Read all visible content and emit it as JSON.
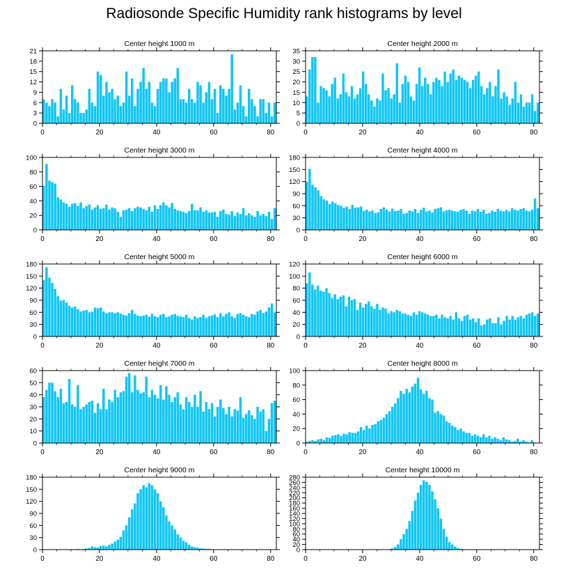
{
  "figure_title": "Radiosonde Specific Humidity rank histograms by level",
  "colors": {
    "bar": "#0fc6f5",
    "bar_edge": "#ffffff",
    "axis": "#000000"
  },
  "chart_data": [
    {
      "type": "bar",
      "title": "Center height 1000 m",
      "ylim": [
        0,
        21
      ],
      "yticks": [
        0,
        3,
        6,
        9,
        12,
        15,
        18,
        21
      ],
      "xlim": [
        0,
        82
      ],
      "xticks": [
        0,
        20,
        40,
        60,
        80
      ],
      "values": [
        7,
        6,
        5,
        7,
        6,
        2,
        10,
        4,
        8,
        3,
        11,
        7,
        6,
        3,
        3,
        4,
        10,
        6,
        5,
        15,
        14,
        8,
        12,
        9,
        10,
        7,
        8,
        5,
        6,
        15,
        8,
        13,
        5,
        10,
        12,
        16,
        10,
        12,
        6,
        5,
        10,
        12,
        13,
        13,
        9,
        12,
        13,
        16,
        7,
        7,
        6,
        10,
        7,
        6,
        12,
        11,
        6,
        9,
        12,
        7,
        10,
        3,
        11,
        10,
        8,
        10,
        20,
        4,
        6,
        11,
        5,
        2,
        10,
        7,
        5,
        2,
        7,
        7,
        3,
        6,
        2,
        6
      ]
    },
    {
      "type": "bar",
      "title": "Center height 2000 m",
      "ylim": [
        0,
        35
      ],
      "yticks": [
        0,
        5,
        10,
        15,
        20,
        25,
        30,
        35
      ],
      "xlim": [
        0,
        82
      ],
      "xticks": [
        0,
        20,
        40,
        60,
        80
      ],
      "values": [
        13,
        26,
        32,
        32,
        10,
        18,
        17,
        16,
        13,
        19,
        22,
        12,
        14,
        24,
        15,
        13,
        18,
        12,
        14,
        17,
        25,
        19,
        14,
        11,
        8,
        12,
        11,
        24,
        16,
        17,
        12,
        14,
        29,
        10,
        19,
        23,
        20,
        13,
        11,
        19,
        27,
        18,
        22,
        19,
        14,
        20,
        22,
        21,
        18,
        25,
        20,
        24,
        26,
        21,
        23,
        22,
        21,
        20,
        17,
        21,
        23,
        25,
        18,
        14,
        17,
        20,
        13,
        18,
        26,
        12,
        15,
        13,
        9,
        12,
        20,
        10,
        14,
        8,
        10,
        10,
        14,
        6,
        10
      ]
    },
    {
      "type": "bar",
      "title": "Center height 3000 m",
      "ylim": [
        0,
        100
      ],
      "yticks": [
        0,
        20,
        40,
        60,
        80,
        100
      ],
      "xlim": [
        0,
        82
      ],
      "xticks": [
        0,
        20,
        40,
        60,
        80
      ],
      "values": [
        61,
        91,
        68,
        66,
        64,
        45,
        42,
        38,
        36,
        32,
        36,
        37,
        33,
        38,
        30,
        33,
        35,
        28,
        31,
        34,
        29,
        30,
        35,
        28,
        31,
        30,
        25,
        18,
        27,
        28,
        30,
        26,
        30,
        32,
        31,
        29,
        27,
        32,
        25,
        34,
        29,
        34,
        38,
        34,
        31,
        37,
        29,
        27,
        26,
        25,
        23,
        26,
        36,
        27,
        27,
        31,
        25,
        27,
        24,
        24,
        25,
        18,
        26,
        28,
        22,
        21,
        26,
        19,
        24,
        22,
        30,
        20,
        23,
        20,
        18,
        26,
        20,
        22,
        19,
        25,
        15,
        30
      ]
    },
    {
      "type": "bar",
      "title": "Center height 4000 m",
      "ylim": [
        0,
        180
      ],
      "yticks": [
        0,
        30,
        60,
        90,
        120,
        150,
        180
      ],
      "xlim": [
        0,
        82
      ],
      "xticks": [
        0,
        20,
        40,
        60,
        80
      ],
      "values": [
        120,
        152,
        112,
        106,
        98,
        84,
        76,
        73,
        64,
        70,
        66,
        62,
        60,
        55,
        58,
        52,
        62,
        55,
        56,
        58,
        47,
        50,
        46,
        48,
        42,
        44,
        52,
        56,
        50,
        46,
        53,
        47,
        48,
        52,
        40,
        42,
        48,
        46,
        52,
        42,
        50,
        55,
        46,
        48,
        43,
        52,
        54,
        56,
        46,
        49,
        50,
        48,
        46,
        45,
        50,
        52,
        48,
        40,
        48,
        46,
        52,
        45,
        50,
        40,
        42,
        48,
        45,
        52,
        48,
        46,
        50,
        46,
        54,
        50,
        48,
        52,
        54,
        48,
        46,
        50,
        78,
        54
      ]
    },
    {
      "type": "bar",
      "title": "Center height 5000 m",
      "ylim": [
        0,
        180
      ],
      "yticks": [
        0,
        30,
        60,
        90,
        120,
        150,
        180
      ],
      "xlim": [
        0,
        82
      ],
      "xticks": [
        0,
        20,
        40,
        60,
        80
      ],
      "values": [
        140,
        172,
        146,
        133,
        118,
        100,
        89,
        90,
        84,
        76,
        72,
        74,
        68,
        62,
        64,
        66,
        60,
        62,
        72,
        70,
        72,
        62,
        58,
        60,
        60,
        58,
        60,
        57,
        54,
        52,
        58,
        66,
        56,
        52,
        50,
        52,
        54,
        49,
        56,
        50,
        48,
        54,
        56,
        48,
        50,
        54,
        56,
        51,
        50,
        48,
        54,
        46,
        42,
        50,
        46,
        48,
        54,
        46,
        50,
        52,
        55,
        48,
        58,
        50,
        56,
        60,
        50,
        46,
        56,
        58,
        54,
        50,
        48,
        56,
        54,
        62,
        66,
        58,
        62,
        72,
        82,
        60
      ]
    },
    {
      "type": "bar",
      "title": "Center height 6000 m",
      "ylim": [
        0,
        120
      ],
      "yticks": [
        0,
        20,
        40,
        60,
        80,
        100,
        120
      ],
      "xlim": [
        0,
        82
      ],
      "xticks": [
        0,
        20,
        40,
        60,
        80
      ],
      "values": [
        88,
        106,
        86,
        78,
        84,
        76,
        74,
        80,
        72,
        64,
        70,
        62,
        66,
        68,
        50,
        66,
        60,
        62,
        44,
        56,
        48,
        54,
        58,
        50,
        46,
        54,
        44,
        48,
        46,
        38,
        42,
        40,
        44,
        42,
        38,
        38,
        36,
        34,
        40,
        36,
        42,
        40,
        38,
        36,
        34,
        34,
        36,
        30,
        36,
        32,
        30,
        34,
        28,
        40,
        30,
        26,
        34,
        36,
        28,
        30,
        24,
        30,
        18,
        20,
        28,
        30,
        22,
        22,
        32,
        20,
        26,
        34,
        28,
        34,
        28,
        32,
        34,
        30,
        36,
        38,
        40,
        34,
        38
      ]
    },
    {
      "type": "bar",
      "title": "Center height 7000 m",
      "ylim": [
        0,
        60
      ],
      "yticks": [
        0,
        10,
        20,
        30,
        40,
        50,
        60
      ],
      "xlim": [
        0,
        82
      ],
      "xticks": [
        0,
        20,
        40,
        60,
        80
      ],
      "values": [
        38,
        44,
        50,
        50,
        43,
        38,
        45,
        33,
        34,
        53,
        32,
        30,
        48,
        28,
        30,
        32,
        34,
        35,
        25,
        33,
        28,
        45,
        28,
        36,
        34,
        44,
        38,
        42,
        43,
        55,
        58,
        42,
        56,
        44,
        41,
        42,
        55,
        38,
        44,
        40,
        37,
        48,
        36,
        47,
        40,
        34,
        38,
        42,
        32,
        28,
        38,
        34,
        30,
        40,
        30,
        43,
        26,
        34,
        28,
        33,
        22,
        30,
        36,
        29,
        24,
        30,
        22,
        28,
        27,
        38,
        21,
        24,
        27,
        23,
        20,
        30,
        26,
        28,
        10,
        20,
        33,
        35
      ]
    },
    {
      "type": "bar",
      "title": "Center height 8000 m",
      "ylim": [
        0,
        100
      ],
      "yticks": [
        0,
        20,
        40,
        60,
        80,
        100
      ],
      "xlim": [
        0,
        82
      ],
      "xticks": [
        0,
        20,
        40,
        60,
        80
      ],
      "values": [
        2,
        3,
        4,
        3,
        5,
        6,
        4,
        8,
        7,
        10,
        11,
        12,
        10,
        13,
        12,
        15,
        14,
        14,
        16,
        22,
        18,
        24,
        20,
        25,
        26,
        30,
        32,
        35,
        40,
        44,
        50,
        55,
        62,
        72,
        68,
        75,
        70,
        78,
        82,
        90,
        74,
        68,
        72,
        62,
        60,
        42,
        44,
        40,
        38,
        30,
        28,
        24,
        22,
        18,
        20,
        16,
        14,
        14,
        10,
        12,
        10,
        8,
        12,
        8,
        10,
        6,
        8,
        6,
        4,
        8,
        5,
        4,
        2,
        3,
        6,
        2,
        4,
        2,
        1,
        4,
        0,
        0
      ]
    },
    {
      "type": "bar",
      "title": "Center height 9000 m",
      "ylim": [
        0,
        180
      ],
      "yticks": [
        0,
        30,
        60,
        90,
        120,
        150,
        180
      ],
      "xlim": [
        0,
        82
      ],
      "xticks": [
        0,
        20,
        40,
        60,
        80
      ],
      "values": [
        0,
        0,
        0,
        0,
        0,
        0,
        0,
        0,
        0,
        0,
        0,
        1,
        2,
        1,
        2,
        3,
        4,
        8,
        6,
        5,
        9,
        10,
        8,
        12,
        15,
        20,
        25,
        32,
        48,
        60,
        80,
        100,
        115,
        140,
        150,
        160,
        155,
        165,
        160,
        150,
        140,
        120,
        105,
        85,
        70,
        60,
        50,
        38,
        30,
        22,
        18,
        12,
        8,
        6,
        5,
        3,
        3,
        2,
        2,
        1,
        1,
        1,
        0,
        0,
        0,
        0,
        0,
        0,
        0,
        0,
        0,
        0,
        0,
        0,
        0,
        0,
        0,
        0,
        0,
        0,
        0,
        0
      ]
    },
    {
      "type": "bar",
      "title": "Center height 10000 m",
      "ylim": [
        0,
        280
      ],
      "yticks": [
        0,
        20,
        40,
        60,
        80,
        100,
        120,
        140,
        160,
        180,
        200,
        220,
        240,
        260,
        280
      ],
      "xlim": [
        0,
        82
      ],
      "xticks": [
        0,
        20,
        40,
        60,
        80
      ],
      "values": [
        0,
        0,
        0,
        0,
        0,
        0,
        0,
        0,
        0,
        0,
        0,
        0,
        0,
        0,
        0,
        0,
        0,
        0,
        0,
        0,
        0,
        0,
        0,
        0,
        0,
        0,
        0,
        0,
        0,
        2,
        5,
        10,
        20,
        40,
        60,
        80,
        110,
        150,
        190,
        220,
        250,
        268,
        262,
        250,
        225,
        195,
        160,
        120,
        80,
        50,
        30,
        20,
        12,
        6,
        3,
        2,
        1,
        1,
        0,
        0,
        0,
        0,
        0,
        0,
        1,
        0,
        0,
        0,
        0,
        0,
        0,
        0,
        0,
        0,
        0,
        0,
        0,
        0,
        0,
        0,
        0,
        0
      ]
    }
  ]
}
